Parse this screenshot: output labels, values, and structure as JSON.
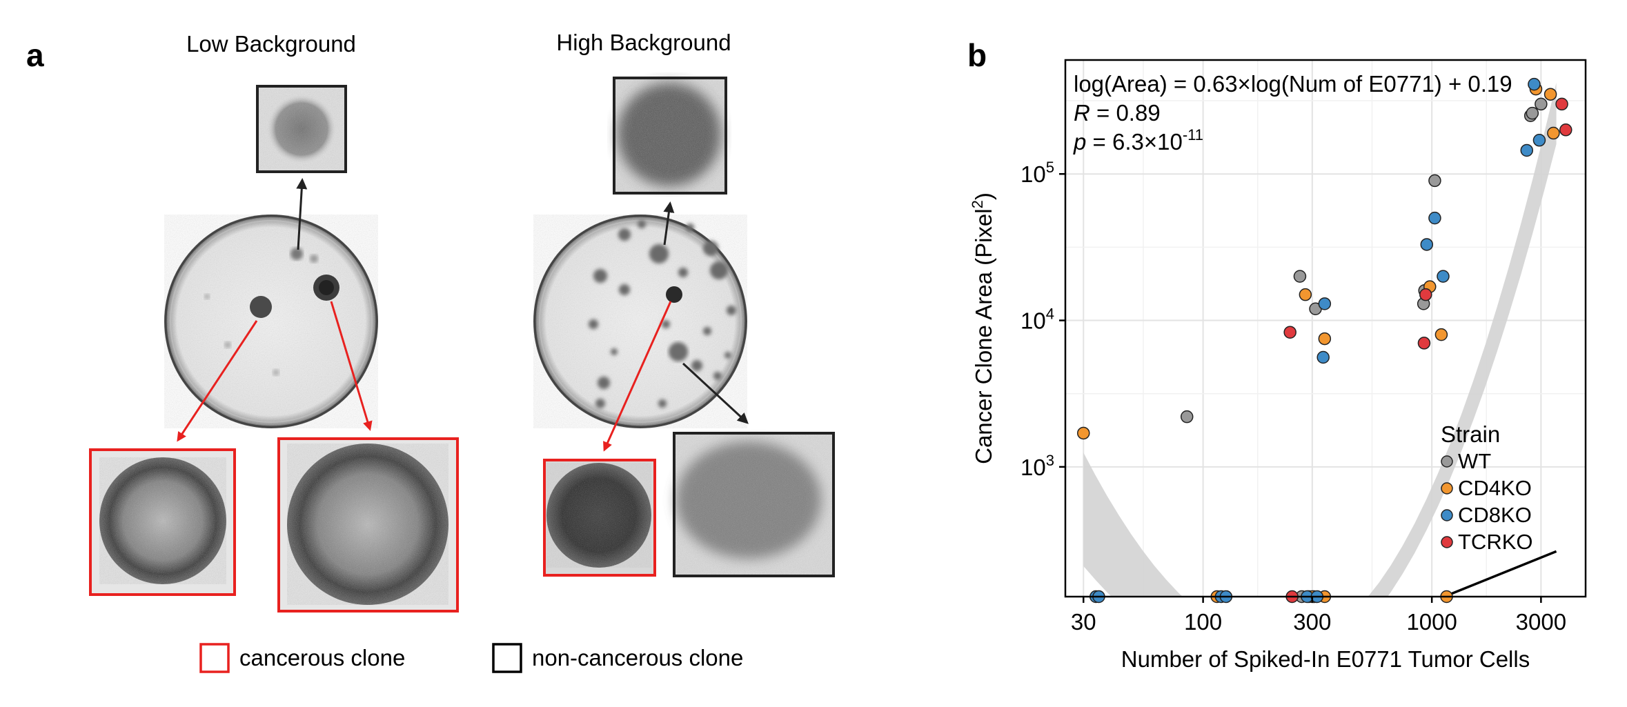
{
  "panel_a": {
    "label": "a",
    "low_title": "Low Background",
    "high_title": "High Background",
    "legend": {
      "cancerous": "cancerous clone",
      "noncancerous": "non-cancerous clone",
      "cancerous_color": "#e8211f",
      "noncancerous_color": "#000000"
    }
  },
  "panel_b": {
    "label": "b",
    "annotation_equation": "log(Area) = 0.63×log(Num of E0771) + 0.19",
    "annotation_r_var": "R",
    "annotation_r_rest": " = 0.89",
    "annotation_p_var": "p",
    "annotation_p_rest": " = 6.3×10",
    "annotation_p_exp": "-11"
  },
  "chart_data": {
    "type": "scatter",
    "title": "",
    "xlabel": "Number of Spiked-In E0771 Tumor Cells",
    "ylabel_text": "Cancer Clone Area (Pixel",
    "ylabel_sup": "2",
    "ylabel_close": ")",
    "x_scale": "log",
    "y_scale": "log",
    "xlim": [
      25,
      4700
    ],
    "ylim": [
      130,
      600000
    ],
    "x_ticks": [
      {
        "value": 30,
        "label": "30"
      },
      {
        "value": 100,
        "label": "100"
      },
      {
        "value": 300,
        "label": "300"
      },
      {
        "value": 1000,
        "label": "1000"
      },
      {
        "value": 3000,
        "label": "3000"
      }
    ],
    "y_ticks": [
      {
        "value": 1000,
        "base": "10",
        "exp": "3"
      },
      {
        "value": 10000,
        "base": "10",
        "exp": "4"
      },
      {
        "value": 100000,
        "base": "10",
        "exp": "5"
      }
    ],
    "grid": true,
    "legend_title": "Strain",
    "legend_position": "bottom-right",
    "fit": {
      "slope": 0.63,
      "intercept": 0.19,
      "x_range": [
        30,
        3500
      ],
      "ci_low_at_start": 210,
      "ci_high_at_start": 1250,
      "ci_low_at_end": 160000,
      "ci_high_at_end": 420000,
      "line_color": "#000000",
      "band_color": "#d3d3d3"
    },
    "series": [
      {
        "name": "WT",
        "color": "#999999",
        "points": [
          [
            85,
            2200
          ],
          [
            265,
            20000
          ],
          [
            310,
            12000
          ],
          [
            920,
            13000
          ],
          [
            930,
            16000
          ],
          [
            1030,
            90000
          ],
          [
            2700,
            250000
          ],
          [
            3000,
            300000
          ],
          [
            2750,
            260000
          ],
          [
            270,
            130
          ],
          [
            290,
            130
          ],
          [
            305,
            130
          ]
        ]
      },
      {
        "name": "CD4KO",
        "color": "#f2962f",
        "points": [
          [
            30,
            1700
          ],
          [
            280,
            15000
          ],
          [
            340,
            7500
          ],
          [
            980,
            17000
          ],
          [
            1100,
            8000
          ],
          [
            2850,
            380000
          ],
          [
            3300,
            350000
          ],
          [
            3400,
            190000
          ],
          [
            115,
            130
          ],
          [
            300,
            130
          ],
          [
            340,
            130
          ],
          [
            1160,
            130
          ]
        ]
      },
      {
        "name": "CD8KO",
        "color": "#3e8bc7",
        "points": [
          [
            335,
            5600
          ],
          [
            340,
            13000
          ],
          [
            950,
            33000
          ],
          [
            1030,
            50000
          ],
          [
            1120,
            20000
          ],
          [
            2600,
            145000
          ],
          [
            2800,
            410000
          ],
          [
            2950,
            170000
          ],
          [
            34,
            130
          ],
          [
            35,
            130
          ],
          [
            120,
            130
          ],
          [
            126,
            130
          ],
          [
            285,
            130
          ],
          [
            315,
            130
          ]
        ]
      },
      {
        "name": "TCRKO",
        "color": "#e03a3e",
        "points": [
          [
            240,
            8300
          ],
          [
            925,
            7000
          ],
          [
            940,
            15000
          ],
          [
            3700,
            300000
          ],
          [
            3850,
            200000
          ],
          [
            245,
            130
          ]
        ]
      }
    ]
  }
}
